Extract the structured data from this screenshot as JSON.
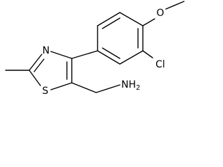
{
  "atoms": {
    "n": "N",
    "s": "S",
    "cl": "Cl",
    "o": "O",
    "nh2": {
      "main": "NH",
      "sub": "2"
    }
  }
}
